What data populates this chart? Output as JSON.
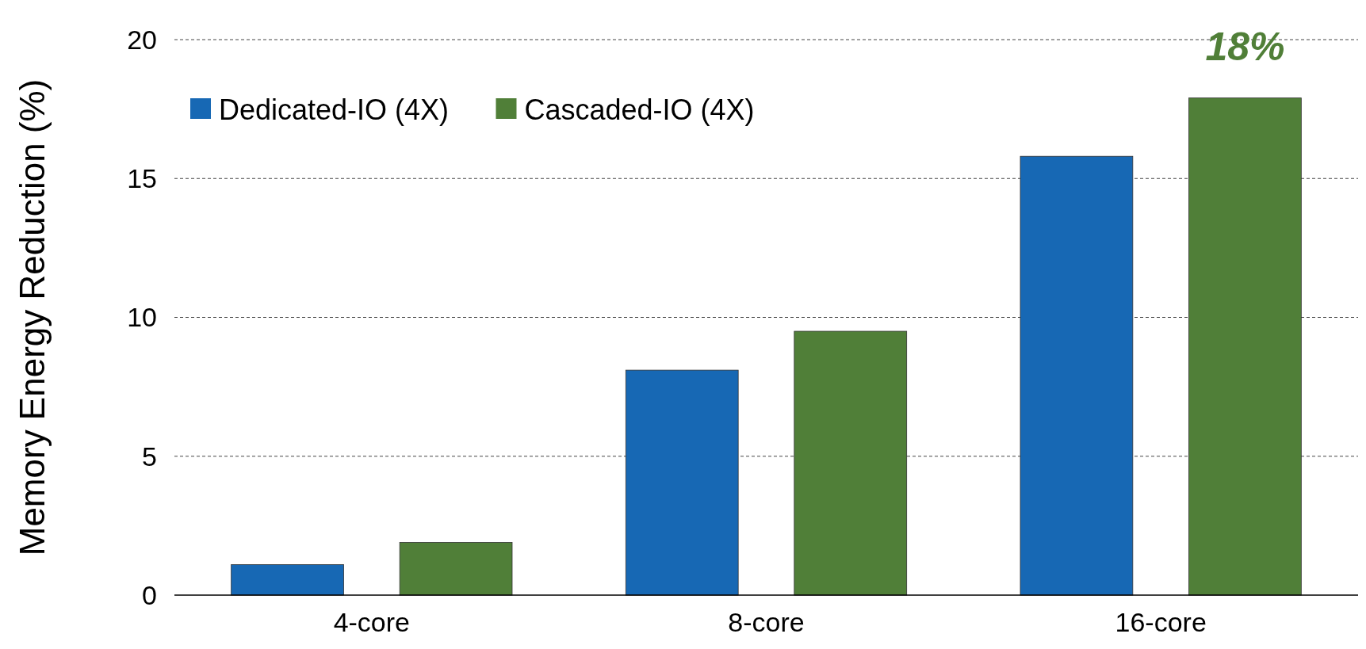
{
  "chart_data": {
    "type": "bar",
    "ylabel": "Memory Energy Reduction (%)",
    "categories": [
      "4-core",
      "8-core",
      "16-core"
    ],
    "series": [
      {
        "name": "Dedicated-IO (4X)",
        "color": "#1768b4",
        "values": [
          1.1,
          8.1,
          15.8
        ]
      },
      {
        "name": "Cascaded-IO (4X)",
        "color": "#507f38",
        "values": [
          1.9,
          9.5,
          17.9
        ]
      }
    ],
    "ylim": [
      0,
      20
    ],
    "yticks": [
      0,
      5,
      10,
      15,
      20
    ],
    "grid": "y",
    "legend": "top left",
    "annotations": [
      "18%"
    ]
  }
}
